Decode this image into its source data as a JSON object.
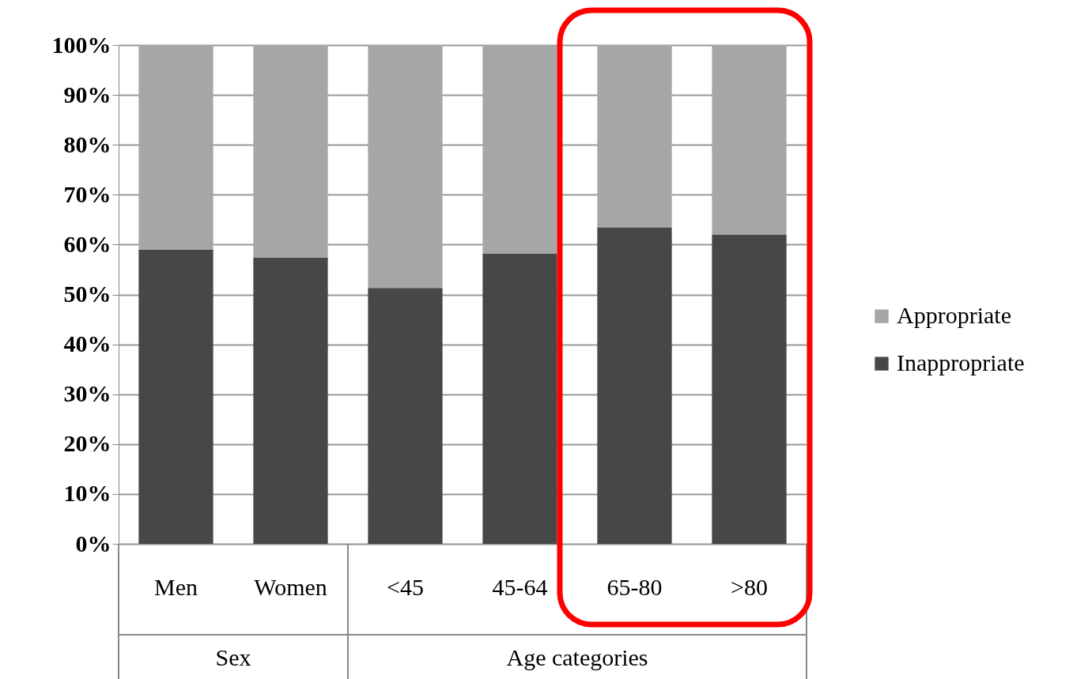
{
  "chart_data": {
    "type": "bar",
    "stacked": true,
    "categories": [
      "Men",
      "Women",
      "<45",
      "45-64",
      "65-80",
      ">80"
    ],
    "series": [
      {
        "name": "Inappropriate",
        "color": "#474747",
        "values": [
          59.0,
          57.4,
          51.3,
          58.2,
          63.4,
          62.0
        ]
      },
      {
        "name": "Appropriate",
        "color": "#a6a6a6",
        "values": [
          41.0,
          42.6,
          48.7,
          41.8,
          36.6,
          38.0
        ]
      }
    ],
    "ylim": [
      0,
      100
    ],
    "yticks": [
      {
        "value": 0,
        "label": "0%"
      },
      {
        "value": 10,
        "label": "10%"
      },
      {
        "value": 20,
        "label": "20%"
      },
      {
        "value": 30,
        "label": "30%"
      },
      {
        "value": 40,
        "label": "40%"
      },
      {
        "value": 50,
        "label": "50%"
      },
      {
        "value": 60,
        "label": "60%"
      },
      {
        "value": 70,
        "label": "70%"
      },
      {
        "value": 80,
        "label": "80%"
      },
      {
        "value": 90,
        "label": "90%"
      },
      {
        "value": 100,
        "label": "100%"
      }
    ],
    "annotations": [
      "Sex",
      "Age categories"
    ],
    "grid": "y",
    "legend": "right"
  }
}
